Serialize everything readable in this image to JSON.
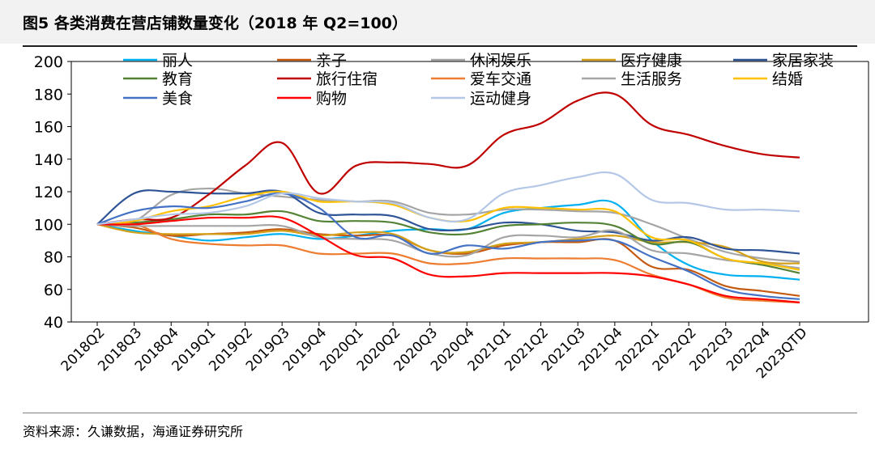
{
  "header": {
    "title": "图5 各类消费在营店铺数量变化（2018 年 Q2=100）"
  },
  "footer": {
    "source": "资料来源：久谦数据，海通证券研究所"
  },
  "chart_data": {
    "type": "line",
    "title": "图5 各类消费在营店铺数量变化（2018 年 Q2=100）",
    "xlabel": "",
    "ylabel": "",
    "ylim": [
      40,
      200
    ],
    "yticks": [
      40,
      60,
      80,
      100,
      120,
      140,
      160,
      180,
      200
    ],
    "grid": false,
    "legend": "top",
    "categories": [
      "2018Q2",
      "2018Q3",
      "2018Q4",
      "2019Q1",
      "2019Q2",
      "2019Q3",
      "2019Q4",
      "2020Q1",
      "2020Q2",
      "2020Q3",
      "2020Q4",
      "2021Q1",
      "2021Q2",
      "2021Q3",
      "2021Q4",
      "2022Q1",
      "2022Q2",
      "2022Q3",
      "2022Q4",
      "2023QTD"
    ],
    "series": [
      {
        "name": "丽人",
        "color": "#00b0f0",
        "values": [
          100,
          96,
          93,
          90,
          92,
          94,
          91,
          93,
          96,
          97,
          97,
          107,
          110,
          112,
          113,
          90,
          75,
          69,
          68,
          66
        ]
      },
      {
        "name": "亲子",
        "color": "#c55a11",
        "values": [
          100,
          98,
          93,
          94,
          95,
          97,
          94,
          93,
          93,
          84,
          82,
          87,
          89,
          89,
          90,
          74,
          72,
          62,
          59,
          56
        ]
      },
      {
        "name": "休闲娱乐",
        "color": "#a5a5a5",
        "values": [
          100,
          102,
          118,
          122,
          119,
          117,
          115,
          114,
          114,
          107,
          106,
          109,
          109,
          108,
          107,
          100,
          91,
          83,
          79,
          77
        ]
      },
      {
        "name": "医疗健康",
        "color": "#d4a017",
        "values": [
          100,
          95,
          94,
          94,
          94,
          96,
          93,
          95,
          94,
          84,
          83,
          88,
          89,
          91,
          93,
          89,
          89,
          86,
          77,
          76
        ]
      },
      {
        "name": "家居家装",
        "color": "#2f5597",
        "values": [
          100,
          119,
          120,
          119,
          119,
          120,
          107,
          106,
          105,
          97,
          97,
          101,
          100,
          96,
          95,
          90,
          92,
          85,
          84,
          82
        ]
      },
      {
        "name": "教育",
        "color": "#548235",
        "values": [
          100,
          101,
          103,
          106,
          106,
          108,
          102,
          102,
          101,
          95,
          94,
          99,
          100,
          101,
          99,
          88,
          89,
          79,
          75,
          70
        ]
      },
      {
        "name": "旅行住宿",
        "color": "#c00000",
        "values": [
          100,
          103,
          104,
          118,
          136,
          150,
          119,
          136,
          138,
          137,
          136,
          155,
          162,
          176,
          180,
          161,
          155,
          148,
          143,
          141
        ]
      },
      {
        "name": "爱车交通",
        "color": "#ed7d31",
        "values": [
          100,
          100,
          91,
          88,
          87,
          87,
          82,
          82,
          82,
          76,
          76,
          79,
          79,
          79,
          78,
          69,
          63,
          55,
          53,
          52
        ]
      },
      {
        "name": "生活服务",
        "color": "#a5a5a5",
        "values": [
          100,
          99,
          99,
          99,
          99,
          99,
          92,
          91,
          90,
          82,
          81,
          92,
          93,
          92,
          96,
          84,
          82,
          78,
          76,
          73
        ]
      },
      {
        "name": "结婚",
        "color": "#ffc000",
        "values": [
          100,
          102,
          108,
          111,
          117,
          120,
          114,
          114,
          112,
          104,
          102,
          110,
          110,
          109,
          108,
          92,
          90,
          79,
          76,
          72
        ]
      },
      {
        "name": "美食",
        "color": "#4472c4",
        "values": [
          100,
          108,
          111,
          110,
          114,
          119,
          110,
          92,
          93,
          82,
          87,
          85,
          89,
          90,
          90,
          80,
          71,
          60,
          56,
          54
        ]
      },
      {
        "name": "购物",
        "color": "#ff0000",
        "values": [
          100,
          100,
          102,
          104,
          104,
          104,
          93,
          81,
          79,
          69,
          68,
          70,
          70,
          70,
          70,
          68,
          63,
          56,
          54,
          52
        ]
      },
      {
        "name": "运动健身",
        "color": "#b4c7e7",
        "values": [
          100,
          103,
          106,
          107,
          111,
          119,
          116,
          114,
          113,
          104,
          103,
          119,
          124,
          129,
          131,
          115,
          113,
          109,
          109,
          108
        ]
      }
    ]
  }
}
